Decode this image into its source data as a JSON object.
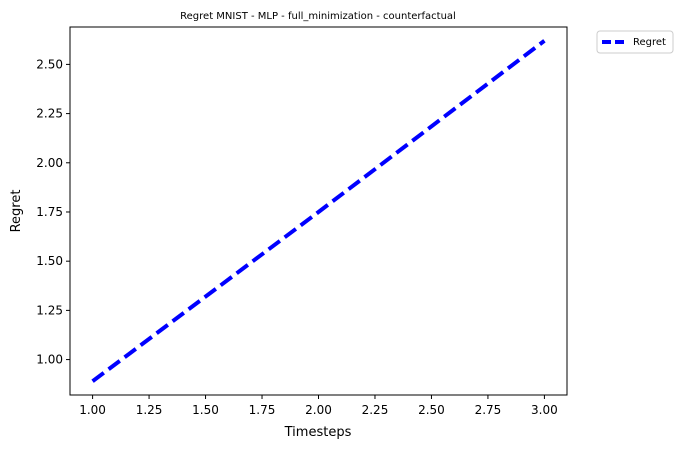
{
  "chart_data": {
    "type": "line",
    "title": "Regret MNIST - MLP - full_minimization - counterfactual",
    "xlabel": "Timesteps",
    "ylabel": "Regret",
    "xlim": [
      0.9,
      3.1
    ],
    "ylim": [
      0.82,
      2.69
    ],
    "xticks": [
      1.0,
      1.25,
      1.5,
      1.75,
      2.0,
      2.25,
      2.5,
      2.75,
      3.0
    ],
    "xtick_labels": [
      "1.00",
      "1.25",
      "1.50",
      "1.75",
      "2.00",
      "2.25",
      "2.50",
      "2.75",
      "3.00"
    ],
    "yticks": [
      1.0,
      1.25,
      1.5,
      1.75,
      2.0,
      2.25,
      2.5
    ],
    "ytick_labels": [
      "1.00",
      "1.25",
      "1.50",
      "1.75",
      "2.00",
      "2.25",
      "2.50"
    ],
    "grid": false,
    "legend_position": "outside-top-right",
    "series": [
      {
        "name": "Regret",
        "color": "#0000ff",
        "line_style": "dashed",
        "x": [
          1,
          2,
          3
        ],
        "y": [
          0.89,
          1.75,
          2.62
        ]
      }
    ]
  }
}
